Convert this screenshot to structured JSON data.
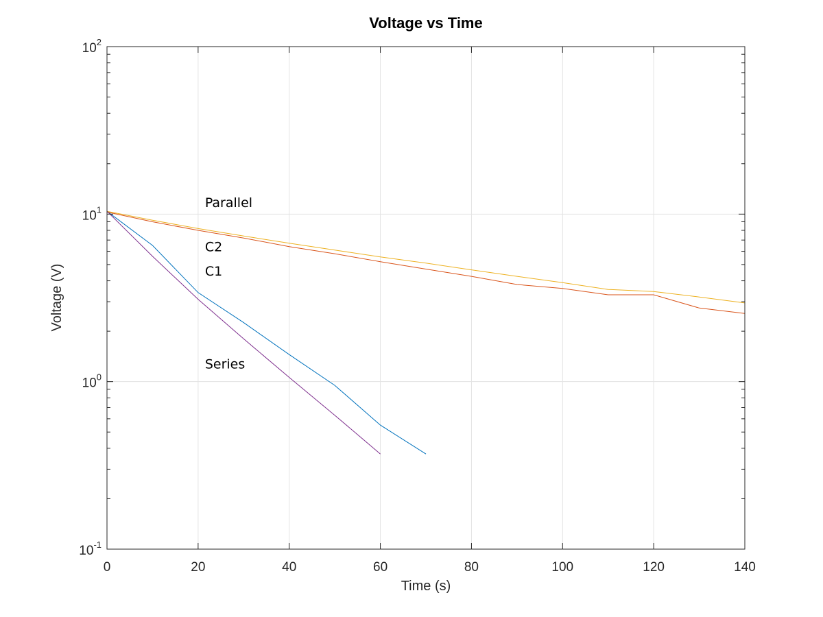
{
  "chart_data": {
    "type": "line",
    "title": "Voltage vs Time",
    "xlabel": "Time (s)",
    "ylabel": "Voltage (V)",
    "xlim": [
      0,
      140
    ],
    "ylim": [
      0.1,
      100
    ],
    "yscale": "log",
    "grid": true,
    "x_ticks": [
      "0",
      "20",
      "40",
      "60",
      "80",
      "100",
      "120",
      "140"
    ],
    "y_ticks": [
      {
        "value": 0.1,
        "base": "10",
        "exp": "-1"
      },
      {
        "value": 1,
        "base": "10",
        "exp": "0"
      },
      {
        "value": 10,
        "base": "10",
        "exp": "1"
      },
      {
        "value": 100,
        "base": "10",
        "exp": "2"
      }
    ],
    "series": [
      {
        "color": "#0072BD",
        "x": [
          0,
          10,
          20,
          30,
          40,
          50,
          60,
          70
        ],
        "y": [
          10.4,
          6.5,
          3.4,
          2.25,
          1.45,
          0.95,
          0.55,
          0.37
        ]
      },
      {
        "color": "#D95319",
        "x": [
          0,
          10,
          20,
          30,
          40,
          50,
          60,
          70,
          80,
          90,
          100,
          110,
          120,
          130,
          140
        ],
        "y": [
          10.3,
          9.0,
          8.0,
          7.2,
          6.4,
          5.8,
          5.2,
          4.7,
          4.25,
          3.8,
          3.6,
          3.3,
          3.3,
          2.75,
          2.55
        ]
      },
      {
        "color": "#EDB120",
        "x": [
          0,
          10,
          20,
          30,
          40,
          50,
          60,
          70,
          80,
          90,
          100,
          110,
          120,
          130,
          140
        ],
        "y": [
          10.4,
          9.2,
          8.2,
          7.4,
          6.7,
          6.1,
          5.55,
          5.1,
          4.65,
          4.25,
          3.9,
          3.55,
          3.45,
          3.2,
          2.95
        ]
      },
      {
        "color": "#7E2F8E",
        "x": [
          0,
          10,
          20,
          30,
          40,
          50,
          60
        ],
        "y": [
          10.4,
          5.6,
          3.1,
          1.8,
          1.06,
          0.63,
          0.37
        ]
      }
    ],
    "annotations": [
      {
        "text": "Parallel",
        "x": 21.5,
        "y": 11.0
      },
      {
        "text": "C2",
        "x": 21.5,
        "y": 6.0
      },
      {
        "text": "C1",
        "x": 21.5,
        "y": 4.3
      },
      {
        "text": "Series",
        "x": 21.5,
        "y": 1.2
      }
    ]
  }
}
